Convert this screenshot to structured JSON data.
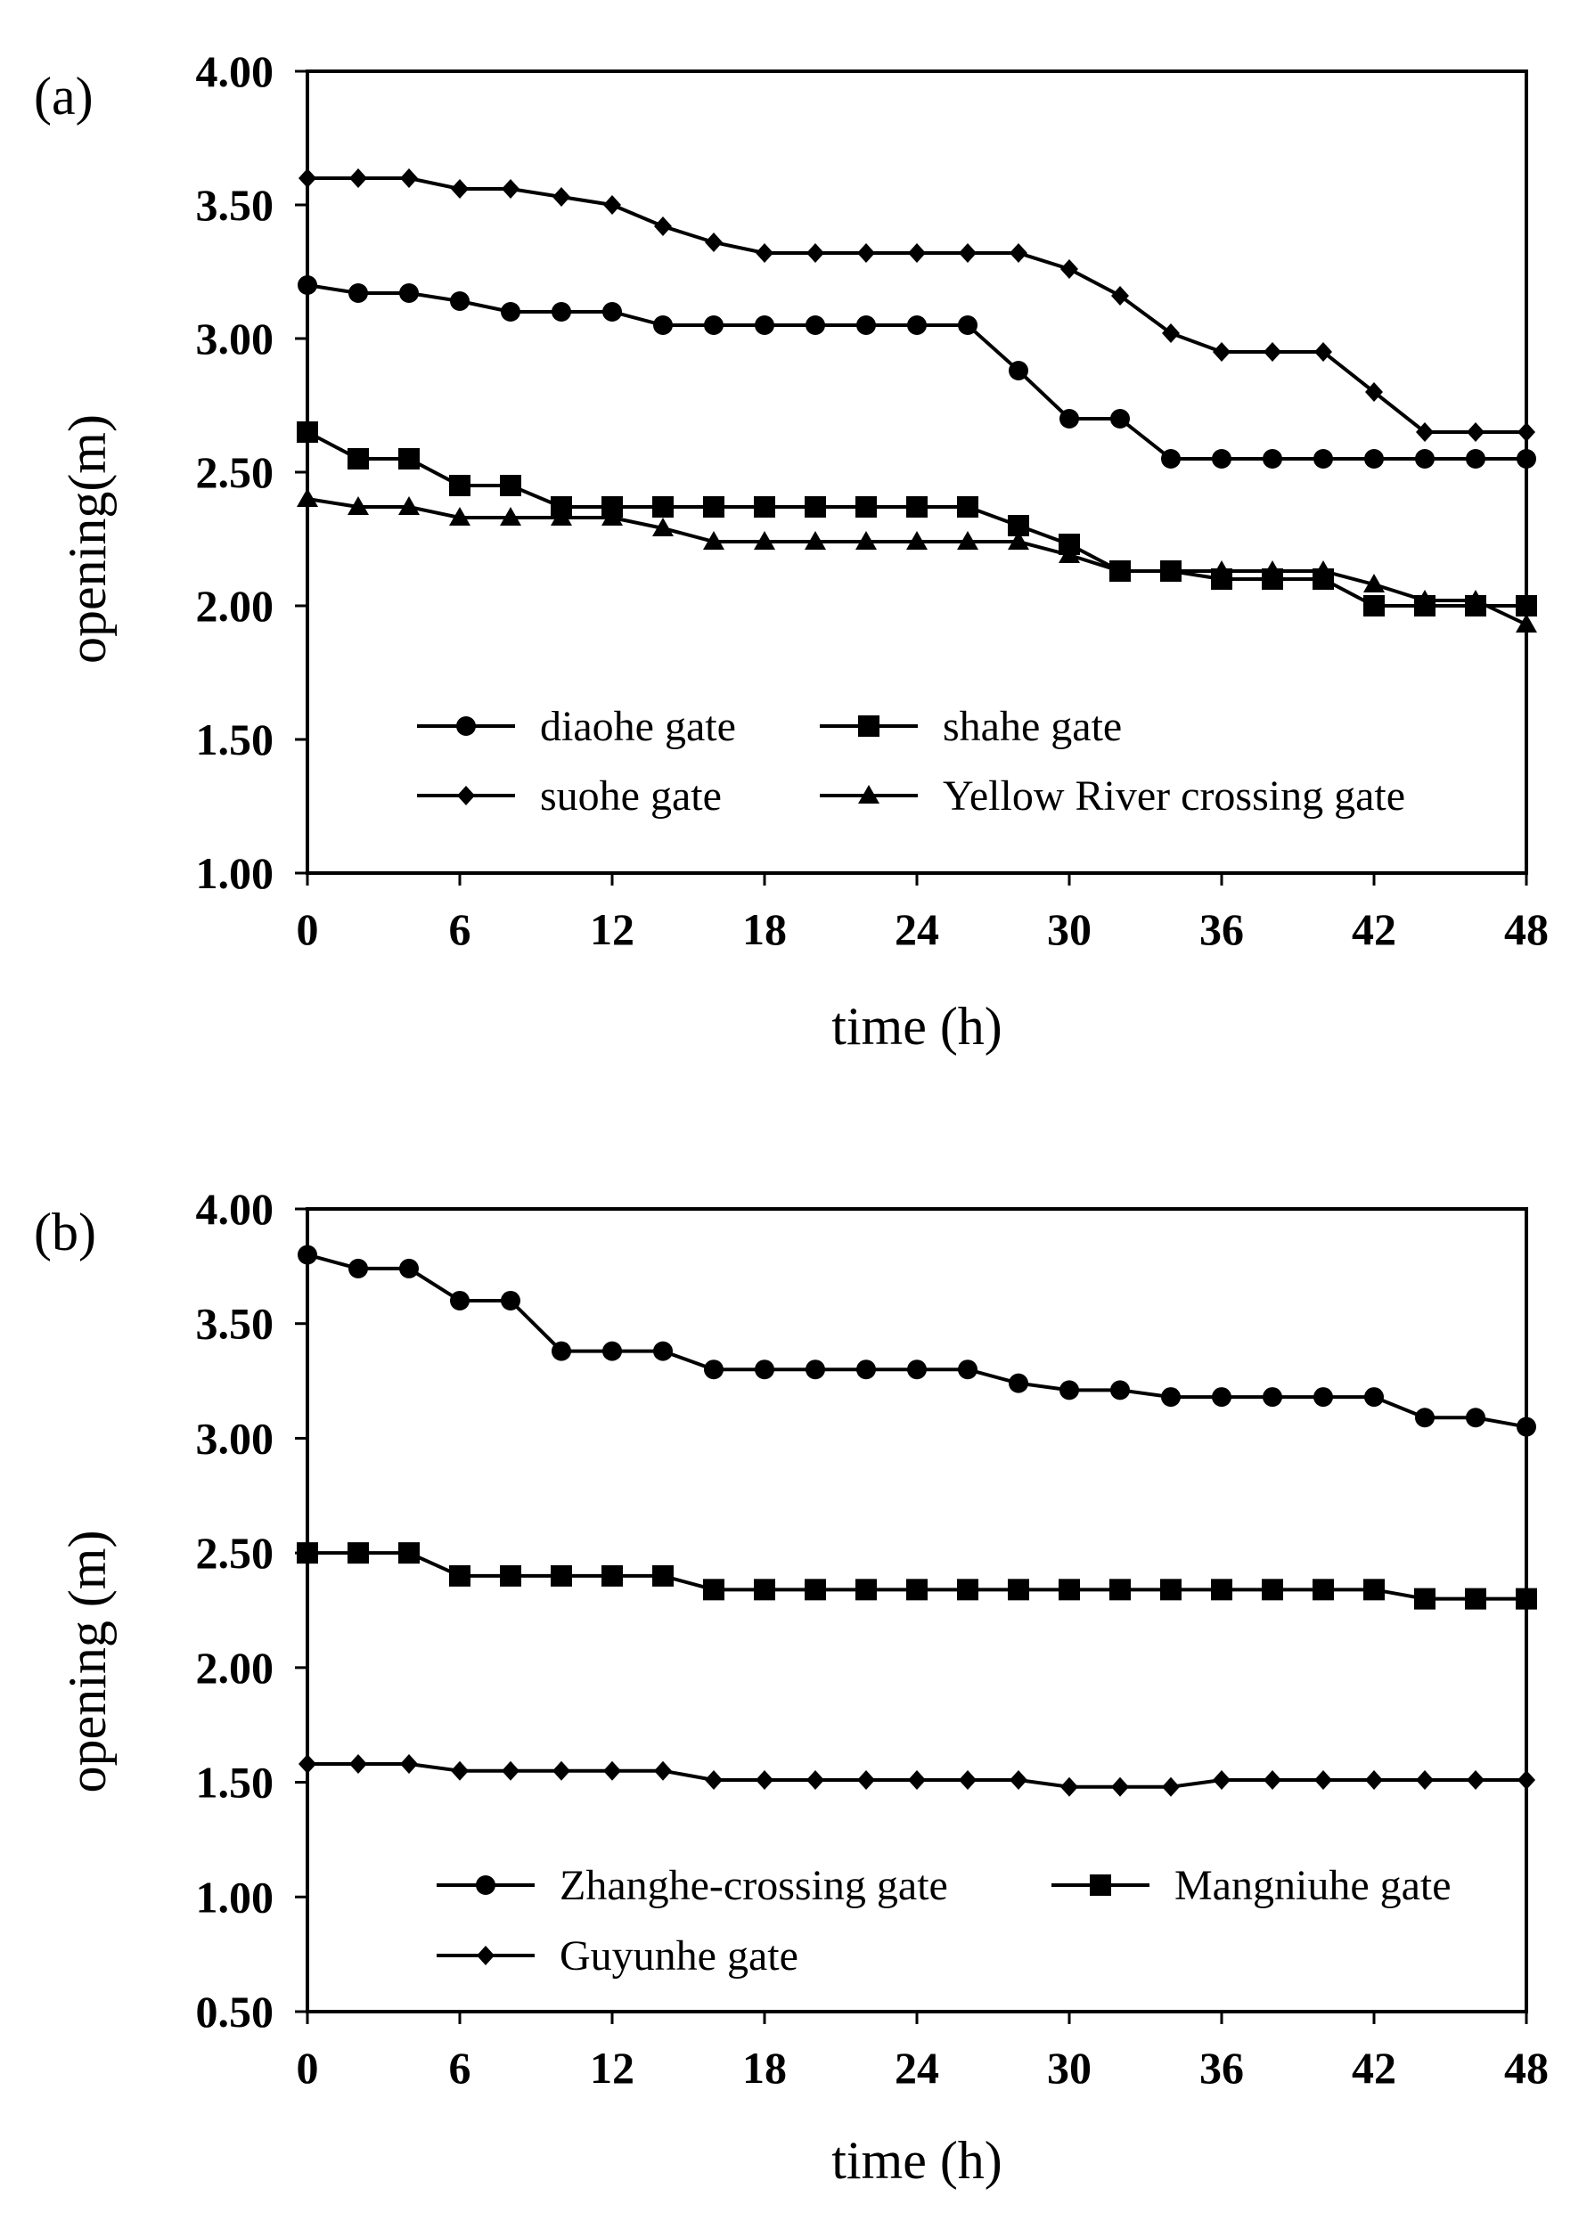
{
  "chart_data": [
    {
      "type": "line",
      "panel_label": "(a)",
      "xlabel": "time (h)",
      "ylabel": "opening(m)",
      "xlim": [
        0,
        48
      ],
      "ylim": [
        1.0,
        4.0
      ],
      "xticks": [
        "0",
        "6",
        "12",
        "18",
        "24",
        "30",
        "36",
        "42",
        "48"
      ],
      "yticks": [
        "1.00",
        "1.50",
        "2.00",
        "2.50",
        "3.00",
        "3.50",
        "4.00"
      ],
      "grid": false,
      "legend_position": "bottom-center",
      "x": [
        0,
        2,
        4,
        6,
        8,
        10,
        12,
        14,
        16,
        18,
        20,
        22,
        24,
        26,
        28,
        30,
        32,
        34,
        36,
        38,
        40,
        42,
        44,
        46,
        48
      ],
      "series": [
        {
          "name": "diaohe gate",
          "marker": "circle",
          "values": [
            3.2,
            3.17,
            3.17,
            3.14,
            3.1,
            3.1,
            3.1,
            3.05,
            3.05,
            3.05,
            3.05,
            3.05,
            3.05,
            3.05,
            2.88,
            2.7,
            2.7,
            2.55,
            2.55,
            2.55,
            2.55,
            2.55,
            2.55,
            2.55,
            2.55
          ]
        },
        {
          "name": "shahe gate",
          "marker": "square",
          "values": [
            2.65,
            2.55,
            2.55,
            2.45,
            2.45,
            2.37,
            2.37,
            2.37,
            2.37,
            2.37,
            2.37,
            2.37,
            2.37,
            2.37,
            2.3,
            2.23,
            2.13,
            2.13,
            2.1,
            2.1,
            2.1,
            2.0,
            2.0,
            2.0,
            2.0
          ]
        },
        {
          "name": "suohe gate",
          "marker": "diamond",
          "values": [
            3.6,
            3.6,
            3.6,
            3.56,
            3.56,
            3.53,
            3.5,
            3.42,
            3.36,
            3.32,
            3.32,
            3.32,
            3.32,
            3.32,
            3.32,
            3.26,
            3.16,
            3.02,
            2.95,
            2.95,
            2.95,
            2.8,
            2.65,
            2.65,
            2.65
          ]
        },
        {
          "name": "Yellow River crossing gate",
          "marker": "triangle",
          "values": [
            2.4,
            2.37,
            2.37,
            2.33,
            2.33,
            2.33,
            2.33,
            2.29,
            2.24,
            2.24,
            2.24,
            2.24,
            2.24,
            2.24,
            2.24,
            2.19,
            2.13,
            2.13,
            2.13,
            2.13,
            2.13,
            2.08,
            2.02,
            2.02,
            1.93
          ]
        }
      ]
    },
    {
      "type": "line",
      "panel_label": "(b)",
      "xlabel": "time (h)",
      "ylabel": "opening (m)",
      "xlim": [
        0,
        48
      ],
      "ylim": [
        0.5,
        4.0
      ],
      "xticks": [
        "0",
        "6",
        "12",
        "18",
        "24",
        "30",
        "36",
        "42",
        "48"
      ],
      "yticks": [
        "0.50",
        "1.00",
        "1.50",
        "2.00",
        "2.50",
        "3.00",
        "3.50",
        "4.00"
      ],
      "grid": false,
      "legend_position": "bottom-center",
      "x": [
        0,
        2,
        4,
        6,
        8,
        10,
        12,
        14,
        16,
        18,
        20,
        22,
        24,
        26,
        28,
        30,
        32,
        34,
        36,
        38,
        40,
        42,
        44,
        46,
        48
      ],
      "series": [
        {
          "name": "Zhanghe-crossing gate",
          "marker": "circle",
          "values": [
            3.8,
            3.74,
            3.74,
            3.6,
            3.6,
            3.38,
            3.38,
            3.38,
            3.3,
            3.3,
            3.3,
            3.3,
            3.3,
            3.3,
            3.24,
            3.21,
            3.21,
            3.18,
            3.18,
            3.18,
            3.18,
            3.18,
            3.09,
            3.09,
            3.05
          ]
        },
        {
          "name": "Mangniuhe gate",
          "marker": "square",
          "values": [
            2.5,
            2.5,
            2.5,
            2.4,
            2.4,
            2.4,
            2.4,
            2.4,
            2.34,
            2.34,
            2.34,
            2.34,
            2.34,
            2.34,
            2.34,
            2.34,
            2.34,
            2.34,
            2.34,
            2.34,
            2.34,
            2.34,
            2.3,
            2.3,
            2.3
          ]
        },
        {
          "name": "Guyunhe gate",
          "marker": "diamond",
          "values": [
            1.58,
            1.58,
            1.58,
            1.55,
            1.55,
            1.55,
            1.55,
            1.55,
            1.51,
            1.51,
            1.51,
            1.51,
            1.51,
            1.51,
            1.51,
            1.48,
            1.48,
            1.48,
            1.51,
            1.51,
            1.51,
            1.51,
            1.51,
            1.51,
            1.51
          ]
        }
      ]
    }
  ]
}
